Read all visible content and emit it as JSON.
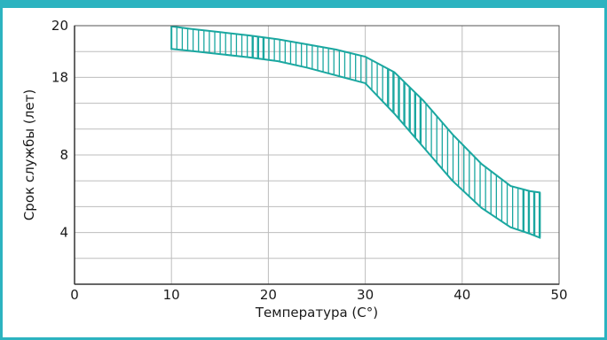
{
  "chart_data": {
    "type": "area",
    "xlabel": "Температура (C°)",
    "ylabel": "Срок службы (лет)",
    "xlim": [
      0,
      50
    ],
    "x_ticks": [
      0,
      10,
      20,
      30,
      40,
      50
    ],
    "x_tick_labels": [
      "0",
      "10",
      "20",
      "30",
      "40",
      "50"
    ],
    "y_ticks": [
      "20",
      "18",
      "8",
      "4"
    ],
    "grid": true,
    "colors": {
      "band_stroke": "#1aa7a0",
      "frame": "#2cb3c0",
      "grid": "#bdbdbd",
      "axis": "#555555"
    },
    "band": {
      "x": [
        10,
        12,
        15,
        18,
        21,
        24,
        27,
        30,
        33,
        36,
        39,
        42,
        45,
        47,
        48
      ],
      "upper": [
        19.95,
        19.75,
        19.5,
        19.25,
        18.95,
        18.55,
        18.15,
        17.6,
        16.4,
        14.2,
        11.6,
        9.3,
        7.6,
        7.2,
        7.1
      ],
      "lower": [
        18.2,
        18.05,
        17.8,
        17.55,
        17.25,
        16.75,
        16.15,
        15.55,
        13.2,
        10.6,
        8.0,
        5.9,
        4.4,
        3.9,
        3.6
      ]
    }
  }
}
